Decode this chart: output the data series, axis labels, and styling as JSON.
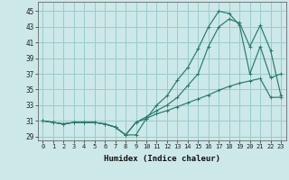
{
  "xlabel": "Humidex (Indice chaleur)",
  "bg_color": "#cce8e8",
  "grid_color": "#99cccc",
  "line_color": "#2a7a6a",
  "xlim": [
    -0.5,
    23.5
  ],
  "ylim": [
    28.5,
    46.2
  ],
  "xticks": [
    0,
    1,
    2,
    3,
    4,
    5,
    6,
    7,
    8,
    9,
    10,
    11,
    12,
    13,
    14,
    15,
    16,
    17,
    18,
    19,
    20,
    21,
    22,
    23
  ],
  "yticks": [
    29,
    31,
    33,
    35,
    37,
    39,
    41,
    43,
    45
  ],
  "series1_x": [
    0,
    1,
    2,
    3,
    4,
    5,
    6,
    7,
    8,
    9,
    10,
    11,
    12,
    13,
    14,
    15,
    16,
    17,
    18,
    19,
    20,
    21,
    22,
    23
  ],
  "series1_y": [
    31.0,
    30.8,
    30.6,
    30.8,
    30.8,
    30.8,
    30.6,
    30.2,
    29.2,
    30.8,
    31.5,
    32.3,
    33.0,
    34.0,
    35.5,
    37.0,
    40.5,
    43.0,
    44.0,
    43.5,
    40.5,
    43.2,
    40.0,
    34.2
  ],
  "series2_x": [
    0,
    1,
    2,
    3,
    4,
    5,
    6,
    7,
    8,
    9,
    10,
    11,
    12,
    13,
    14,
    15,
    16,
    17,
    18,
    19,
    20,
    21,
    22,
    23
  ],
  "series2_y": [
    31.0,
    30.8,
    30.6,
    30.8,
    30.8,
    30.8,
    30.6,
    30.2,
    29.2,
    30.8,
    31.3,
    31.9,
    32.3,
    32.8,
    33.3,
    33.8,
    34.3,
    34.9,
    35.4,
    35.8,
    36.1,
    36.4,
    34.0,
    34.0
  ],
  "series3_x": [
    0,
    1,
    2,
    3,
    4,
    5,
    6,
    7,
    8,
    9,
    10,
    11,
    12,
    13,
    14,
    15,
    16,
    17,
    18,
    19,
    20,
    21,
    22,
    23
  ],
  "series3_y": [
    31.0,
    30.8,
    30.6,
    30.8,
    30.8,
    30.8,
    30.6,
    30.2,
    29.2,
    29.2,
    31.3,
    33.0,
    34.2,
    36.2,
    37.8,
    40.2,
    43.0,
    45.0,
    44.7,
    43.2,
    37.0,
    40.5,
    36.5,
    37.0
  ]
}
